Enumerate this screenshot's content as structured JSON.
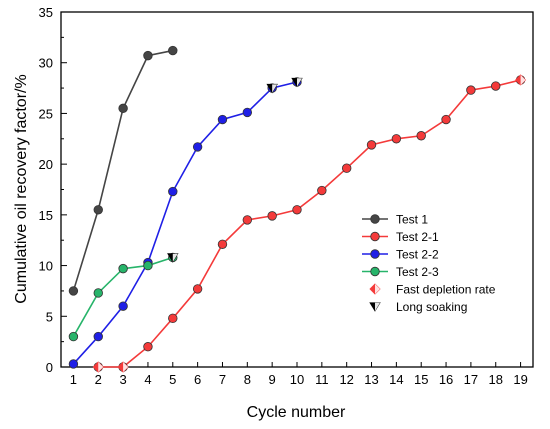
{
  "chart_data": {
    "type": "line",
    "xlabel": "Cycle number",
    "ylabel": "Cumulative oil recovery factor/%",
    "xlim": [
      0.5,
      19.5
    ],
    "ylim": [
      0,
      35
    ],
    "x_ticks": [
      "1",
      "2",
      "3",
      "4",
      "5",
      "6",
      "7",
      "8",
      "9",
      "10",
      "11",
      "12",
      "13",
      "14",
      "15",
      "16",
      "17",
      "18",
      "19"
    ],
    "y_ticks": [
      "0",
      "5",
      "10",
      "15",
      "20",
      "25",
      "30",
      "35"
    ],
    "grid": false,
    "legend_position": "right",
    "series": [
      {
        "name": "Test 1",
        "color": "#454545",
        "marker": "circle",
        "x": [
          1,
          2,
          3,
          4,
          5
        ],
        "y": [
          7.5,
          15.5,
          25.5,
          30.7,
          31.2
        ]
      },
      {
        "name": "Test 2-1",
        "color": "#f43a3a",
        "marker": "circle",
        "x": [
          2,
          3,
          4,
          5,
          6,
          7,
          8,
          9,
          10,
          11,
          12,
          13,
          14,
          15,
          16,
          17,
          18,
          19
        ],
        "y": [
          0,
          0,
          2.0,
          4.8,
          7.7,
          12.1,
          14.5,
          14.9,
          15.5,
          17.4,
          19.6,
          21.9,
          22.5,
          22.8,
          24.4,
          27.3,
          27.7,
          28.3
        ]
      },
      {
        "name": "Test 2-2",
        "color": "#1f1fe6",
        "marker": "circle",
        "x": [
          1,
          2,
          3,
          4,
          5,
          6,
          7,
          8,
          9,
          10
        ],
        "y": [
          0.3,
          3.0,
          6.0,
          10.3,
          17.3,
          21.7,
          24.4,
          25.1,
          27.5,
          28.1
        ]
      },
      {
        "name": "Test 2-3",
        "color": "#27b46a",
        "marker": "circle",
        "x": [
          1,
          2,
          3,
          4,
          5
        ],
        "y": [
          3.0,
          7.3,
          9.7,
          10.0,
          10.8
        ]
      }
    ],
    "markers": [
      {
        "name": "Fast depletion rate",
        "color": "#f43a3a",
        "shape": "diamond",
        "points": [
          {
            "x": 2,
            "y": 0
          },
          {
            "x": 3,
            "y": 0
          },
          {
            "x": 19,
            "y": 28.3
          }
        ]
      },
      {
        "name": "Long soaking",
        "color": "#000000",
        "shape": "triangle-down",
        "points": [
          {
            "x": 5,
            "y": 10.8
          },
          {
            "x": 9,
            "y": 27.5
          },
          {
            "x": 10,
            "y": 28.1
          }
        ]
      }
    ],
    "legend": [
      {
        "label": "Test 1",
        "color": "#454545",
        "kind": "line-circle"
      },
      {
        "label": "Test 2-1",
        "color": "#f43a3a",
        "kind": "line-circle"
      },
      {
        "label": "Test 2-2",
        "color": "#1f1fe6",
        "kind": "line-circle"
      },
      {
        "label": "Test 2-3",
        "color": "#27b46a",
        "kind": "line-circle"
      },
      {
        "label": "Fast depletion rate",
        "color": "#f43a3a",
        "kind": "diamond"
      },
      {
        "label": "Long soaking",
        "color": "#000000",
        "kind": "triangle-down"
      }
    ]
  }
}
